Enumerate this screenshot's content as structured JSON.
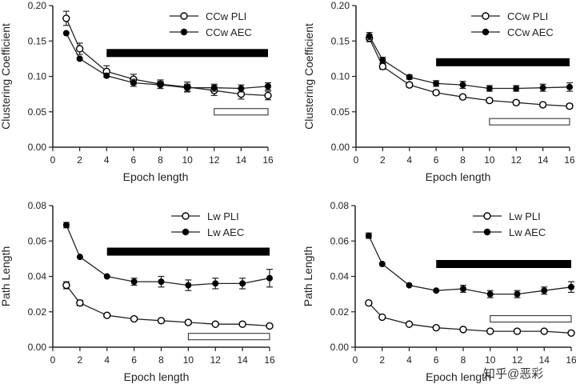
{
  "figure": {
    "watermark": "知乎@恶彩"
  },
  "chart_data": [
    {
      "type": "line",
      "xlabel": "Epoch length",
      "ylabel": "Clustering Coefficient",
      "x": [
        1,
        2,
        4,
        6,
        8,
        10,
        12,
        14,
        16
      ],
      "xlim": [
        0,
        16
      ],
      "ylim": [
        0,
        0.2
      ],
      "xticks": [
        "0",
        "2",
        "4",
        "6",
        "8",
        "10",
        "12",
        "14",
        "16"
      ],
      "yticks": [
        "0.00",
        "0.05",
        "0.10",
        "0.15",
        "0.20"
      ],
      "legend_position": "top-right",
      "series": [
        {
          "name": "CCw PLI",
          "marker": "open-circle",
          "values": [
            0.182,
            0.139,
            0.107,
            0.096,
            0.089,
            0.085,
            0.08,
            0.075,
            0.073
          ],
          "errors": [
            0.01,
            0.008,
            0.008,
            0.007,
            0.006,
            0.007,
            0.007,
            0.007,
            0.006
          ]
        },
        {
          "name": "CCw AEC",
          "marker": "filled-circle",
          "values": [
            0.161,
            0.125,
            0.101,
            0.091,
            0.088,
            0.084,
            0.084,
            0.083,
            0.086
          ],
          "errors": [
            0,
            0,
            0,
            0.005,
            0.005,
            0.005,
            0.005,
            0.005,
            0.005
          ]
        }
      ],
      "sig_bars": [
        {
          "style": "filled",
          "x": [
            4,
            16
          ],
          "y": 0.133
        },
        {
          "style": "open",
          "x": [
            12,
            16
          ],
          "y": 0.05
        }
      ]
    },
    {
      "type": "line",
      "xlabel": "Epoch length",
      "ylabel": "Clustering Coefficient",
      "x": [
        1,
        2,
        4,
        6,
        8,
        10,
        12,
        14,
        16
      ],
      "xlim": [
        0,
        16
      ],
      "ylim": [
        0,
        0.2
      ],
      "xticks": [
        "0",
        "2",
        "4",
        "6",
        "8",
        "10",
        "12",
        "14",
        "16"
      ],
      "yticks": [
        "0.00",
        "0.05",
        "0.10",
        "0.15",
        "0.20"
      ],
      "legend_position": "top-right",
      "series": [
        {
          "name": "CCw PLI",
          "marker": "open-circle",
          "values": [
            0.154,
            0.114,
            0.088,
            0.077,
            0.071,
            0.066,
            0.063,
            0.06,
            0.058
          ],
          "errors": [
            0.005,
            0.004,
            0.003,
            0.003,
            0.003,
            0.003,
            0.003,
            0.003,
            0.003
          ]
        },
        {
          "name": "CCw AEC",
          "marker": "filled-circle",
          "values": [
            0.157,
            0.123,
            0.099,
            0.09,
            0.088,
            0.083,
            0.083,
            0.084,
            0.085
          ],
          "errors": [
            0.005,
            0.004,
            0.003,
            0.004,
            0.005,
            0.004,
            0.004,
            0.005,
            0.006
          ]
        }
      ],
      "sig_bars": [
        {
          "style": "filled",
          "x": [
            6,
            16
          ],
          "y": 0.12
        },
        {
          "style": "open",
          "x": [
            10,
            16
          ],
          "y": 0.036
        }
      ]
    },
    {
      "type": "line",
      "xlabel": "Epoch length",
      "ylabel": "Path Length",
      "x": [
        1,
        2,
        4,
        6,
        8,
        10,
        12,
        14,
        16
      ],
      "xlim": [
        0,
        16
      ],
      "ylim": [
        0,
        0.08
      ],
      "xticks": [
        "0",
        "2",
        "4",
        "6",
        "8",
        "10",
        "12",
        "14",
        "16"
      ],
      "yticks": [
        "0.00",
        "0.02",
        "0.04",
        "0.06",
        "0.08"
      ],
      "legend_position": "top-right",
      "series": [
        {
          "name": "Lw PLI",
          "marker": "open-circle",
          "values": [
            0.035,
            0.025,
            0.018,
            0.016,
            0.015,
            0.014,
            0.013,
            0.013,
            0.012
          ],
          "errors": [
            0.002,
            0.0015,
            0.001,
            0.001,
            0.001,
            0.001,
            0.0005,
            0.0005,
            0.0005
          ]
        },
        {
          "name": "Lw AEC",
          "marker": "filled-circle",
          "values": [
            0.069,
            0.051,
            0.04,
            0.037,
            0.037,
            0.035,
            0.036,
            0.036,
            0.039
          ],
          "errors": [
            0.0015,
            0,
            0,
            0.002,
            0.003,
            0.003,
            0.003,
            0.003,
            0.005
          ]
        }
      ],
      "sig_bars": [
        {
          "style": "filled",
          "x": [
            4,
            16
          ],
          "y": 0.054
        },
        {
          "style": "open",
          "x": [
            10,
            16
          ],
          "y": 0.006
        }
      ]
    },
    {
      "type": "line",
      "xlabel": "Epoch length",
      "ylabel": "Path Length",
      "x": [
        1,
        2,
        4,
        6,
        8,
        10,
        12,
        14,
        16
      ],
      "xlim": [
        0,
        16
      ],
      "ylim": [
        0,
        0.08
      ],
      "xticks": [
        "0",
        "2",
        "4",
        "6",
        "8",
        "10",
        "12",
        "14",
        "16"
      ],
      "yticks": [
        "0.00",
        "0.02",
        "0.04",
        "0.06",
        "0.08"
      ],
      "legend_position": "top-right",
      "series": [
        {
          "name": "Lw PLI",
          "marker": "open-circle",
          "values": [
            0.025,
            0.017,
            0.013,
            0.011,
            0.01,
            0.009,
            0.009,
            0.009,
            0.008
          ],
          "errors": [
            0,
            0,
            0,
            0,
            0,
            0,
            0,
            0,
            0
          ]
        },
        {
          "name": "Lw AEC",
          "marker": "filled-circle",
          "values": [
            0.063,
            0.047,
            0.035,
            0.032,
            0.033,
            0.03,
            0.03,
            0.032,
            0.034
          ],
          "errors": [
            0.0015,
            0,
            0,
            0,
            0.002,
            0.002,
            0.002,
            0.002,
            0.003
          ]
        }
      ],
      "sig_bars": [
        {
          "style": "filled",
          "x": [
            6,
            16
          ],
          "y": 0.047
        },
        {
          "style": "open",
          "x": [
            10,
            16
          ],
          "y": 0.016
        }
      ]
    }
  ]
}
